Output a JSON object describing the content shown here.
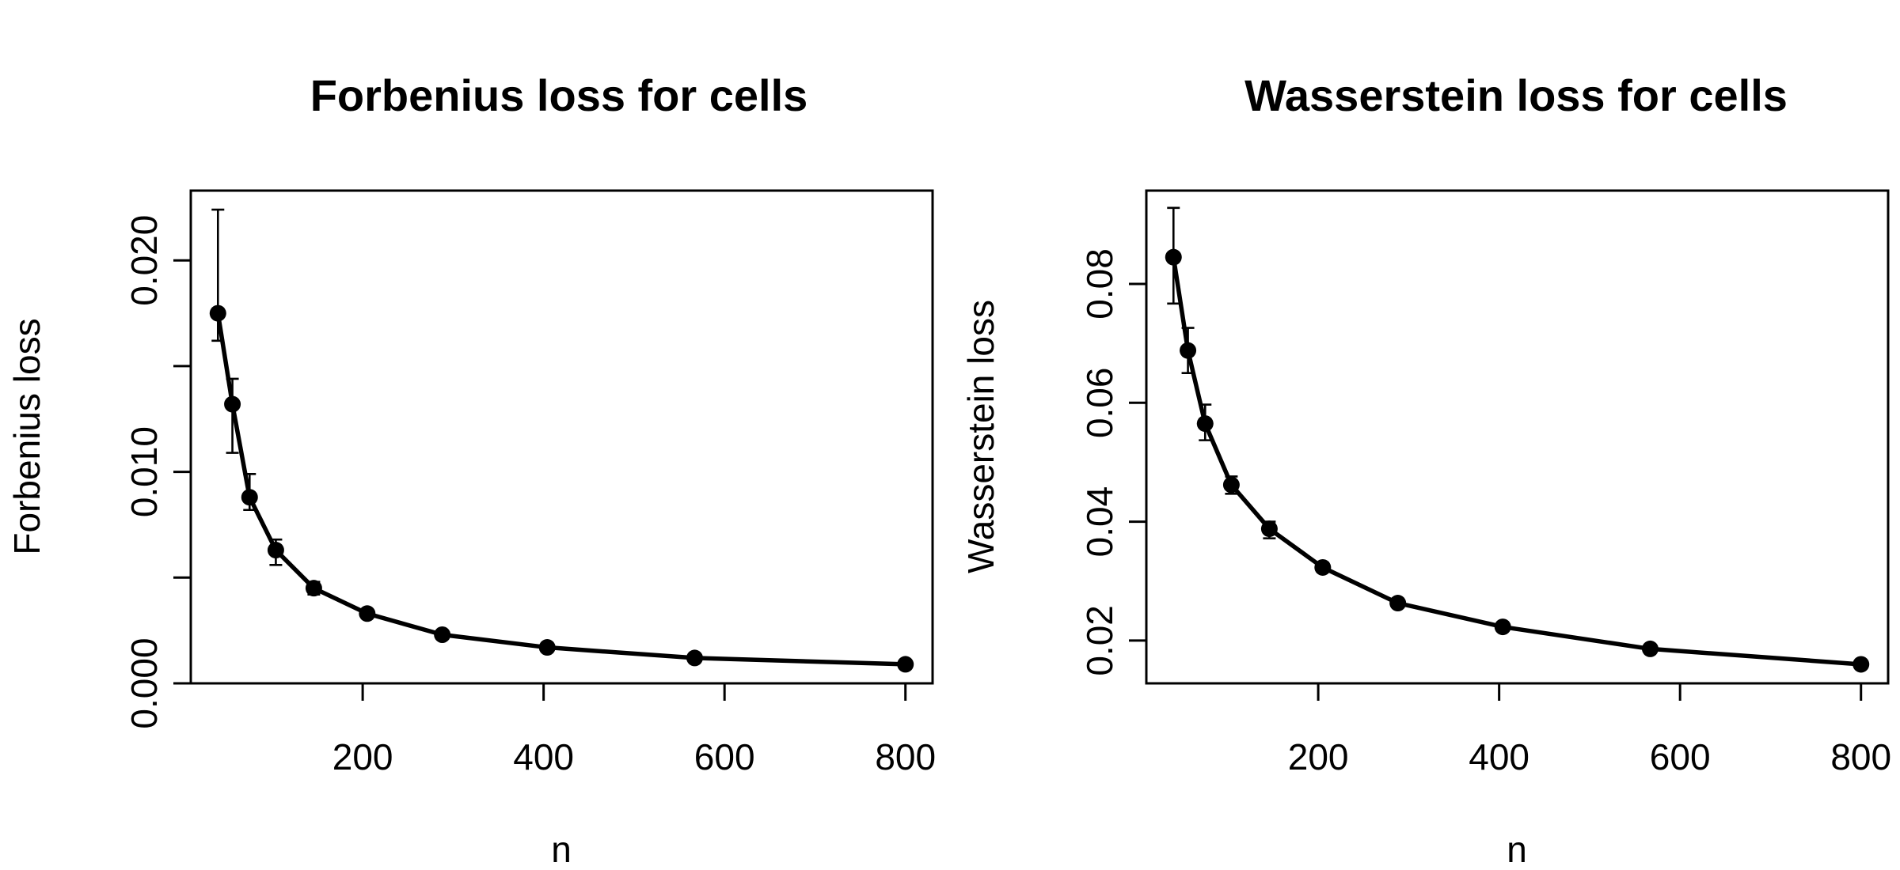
{
  "chart_data": [
    {
      "type": "line",
      "title": "Forbenius loss for cells",
      "xlabel": "n",
      "ylabel": "Forbenius loss",
      "xticks": [
        200,
        400,
        600,
        800
      ],
      "yticks": [
        0.0,
        0.01,
        0.02
      ],
      "ytick_labels": [
        "0.000",
        "0.010",
        "0.020"
      ],
      "xlim": [
        10,
        830
      ],
      "ylim": [
        0,
        0.0233
      ],
      "grid": false,
      "series": [
        {
          "x": [
            40,
            56,
            75,
            104,
            146,
            205,
            288,
            404,
            567,
            800
          ],
          "y": [
            0.0175,
            0.0132,
            0.0088,
            0.0063,
            0.0045,
            0.0033,
            0.0023,
            0.0017,
            0.0012,
            0.0009
          ],
          "err_low": [
            0.0162,
            0.0109,
            0.0082,
            0.0056,
            0.0042,
            0.0031,
            0.0022,
            0.0016,
            0.0011,
            0.0008
          ],
          "err_high": [
            0.0224,
            0.0144,
            0.0099,
            0.0068,
            0.0048,
            0.0035,
            0.0024,
            0.0018,
            0.0013,
            0.001
          ]
        }
      ]
    },
    {
      "type": "line",
      "title": "Wasserstein loss for cells",
      "xlabel": "n",
      "ylabel": "Wasserstein loss",
      "xticks": [
        200,
        400,
        600,
        800
      ],
      "yticks": [
        0.02,
        0.04,
        0.06,
        0.08
      ],
      "ytick_labels": [
        "0.02",
        "0.04",
        "0.06",
        "0.08"
      ],
      "xlim": [
        10,
        830
      ],
      "ylim": [
        0.0128,
        0.0957
      ],
      "grid": false,
      "series": [
        {
          "x": [
            40,
            56,
            75,
            104,
            146,
            205,
            288,
            404,
            567,
            800
          ],
          "y": [
            0.0845,
            0.0688,
            0.0565,
            0.0462,
            0.0388,
            0.0323,
            0.0263,
            0.0223,
            0.0186,
            0.016
          ],
          "err_low": [
            0.0767,
            0.065,
            0.0537,
            0.0447,
            0.0372,
            0.0316,
            0.0259,
            0.022,
            0.0183,
            0.0157
          ],
          "err_high": [
            0.0928,
            0.0726,
            0.0597,
            0.0476,
            0.04,
            0.0331,
            0.0267,
            0.0226,
            0.0189,
            0.0163
          ]
        }
      ]
    }
  ]
}
